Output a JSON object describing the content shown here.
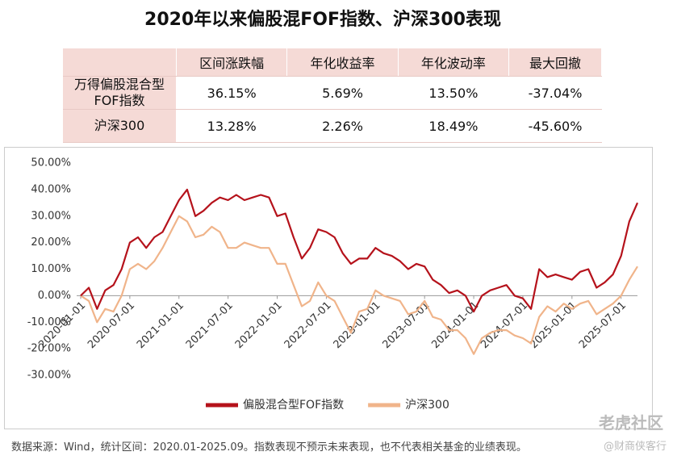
{
  "title": "2020年以来偏股混FOF指数、沪深300表现",
  "table": {
    "columns": [
      "区间涨跌幅",
      "年化收益率",
      "年化波动率",
      "最大回撤"
    ],
    "rows": [
      {
        "name": "万得偏股混合型FOF指数",
        "cells": [
          "36.15%",
          "5.69%",
          "13.50%",
          "-37.04%"
        ]
      },
      {
        "name": "沪深300",
        "cells": [
          "13.28%",
          "2.26%",
          "18.49%",
          "-45.60%"
        ]
      }
    ]
  },
  "chart_data": {
    "type": "line",
    "x": [
      "2020-01-01",
      "2020-02-01",
      "2020-03-01",
      "2020-04-01",
      "2020-05-01",
      "2020-06-01",
      "2020-07-01",
      "2020-08-01",
      "2020-09-01",
      "2020-10-01",
      "2020-11-01",
      "2020-12-01",
      "2021-01-01",
      "2021-02-01",
      "2021-03-01",
      "2021-04-01",
      "2021-05-01",
      "2021-06-01",
      "2021-07-01",
      "2021-08-01",
      "2021-09-01",
      "2021-10-01",
      "2021-11-01",
      "2021-12-01",
      "2022-01-01",
      "2022-02-01",
      "2022-03-01",
      "2022-04-01",
      "2022-05-01",
      "2022-06-01",
      "2022-07-01",
      "2022-08-01",
      "2022-09-01",
      "2022-10-01",
      "2022-11-01",
      "2022-12-01",
      "2023-01-01",
      "2023-02-01",
      "2023-03-01",
      "2023-04-01",
      "2023-05-01",
      "2023-06-01",
      "2023-07-01",
      "2023-08-01",
      "2023-09-01",
      "2023-10-01",
      "2023-11-01",
      "2023-12-01",
      "2024-01-01",
      "2024-02-01",
      "2024-03-01",
      "2024-04-01",
      "2024-05-01",
      "2024-06-01",
      "2024-07-01",
      "2024-08-01",
      "2024-09-01",
      "2024-10-01",
      "2024-11-01",
      "2024-12-01",
      "2025-01-01",
      "2025-02-01",
      "2025-03-01",
      "2025-04-01",
      "2025-05-01",
      "2025-06-01",
      "2025-07-01",
      "2025-08-01",
      "2025-09-01"
    ],
    "series": [
      {
        "name": "偏股混合型FOF指数",
        "color": "#b5121b",
        "values": [
          0,
          3,
          -5,
          2,
          4,
          10,
          20,
          22,
          18,
          22,
          24,
          30,
          36,
          40,
          30,
          32,
          35,
          37,
          36,
          38,
          36,
          37,
          38,
          37,
          30,
          31,
          22,
          14,
          18,
          25,
          24,
          22,
          16,
          12,
          14,
          14,
          18,
          16,
          15,
          13,
          10,
          12,
          11,
          6,
          4,
          1,
          2,
          0,
          -6,
          0,
          2,
          3,
          4,
          0,
          -1,
          -5,
          10,
          7,
          8,
          7,
          6,
          9,
          10,
          3,
          5,
          8,
          15,
          28,
          35
        ]
      },
      {
        "name": "沪深300",
        "color": "#f0b48a",
        "values": [
          0,
          -2,
          -10,
          -5,
          -6,
          0,
          10,
          12,
          10,
          13,
          18,
          24,
          30,
          28,
          22,
          23,
          26,
          24,
          18,
          18,
          20,
          19,
          18,
          18,
          12,
          12,
          4,
          -4,
          -2,
          5,
          0,
          -2,
          -8,
          -14,
          -6,
          -5,
          2,
          0,
          -1,
          -2,
          -7,
          -6,
          -2,
          -8,
          -9,
          -13,
          -13,
          -16,
          -22,
          -16,
          -14,
          -13,
          -13,
          -15,
          -16,
          -18,
          -8,
          -4,
          -6,
          -3,
          -5,
          -3,
          -2,
          -7,
          -5,
          -3,
          0,
          6,
          11
        ]
      }
    ],
    "ylim": [
      -30,
      50
    ],
    "yticks": [
      {
        "value": 50,
        "label": "50.00%"
      },
      {
        "value": 40,
        "label": "40.00%"
      },
      {
        "value": 30,
        "label": "30.00%"
      },
      {
        "value": 20,
        "label": "20.00%"
      },
      {
        "value": 10,
        "label": "10.00%"
      },
      {
        "value": 0,
        "label": "0.00%"
      },
      {
        "value": -10,
        "label": "-10.00%"
      },
      {
        "value": -20,
        "label": "-20.00%"
      },
      {
        "value": -30,
        "label": "-30.00%"
      }
    ],
    "xticks": [
      "2020-01-01",
      "2020-07-01",
      "2021-01-01",
      "2021-07-01",
      "2022-01-01",
      "2022-07-01",
      "2023-01-01",
      "2023-07-01",
      "2024-01-01",
      "2024-07-01",
      "2025-01-01",
      "2025-07-01"
    ],
    "grid": false,
    "legend": "bottom"
  },
  "note": "数据来源：Wind，统计区间：2020.01-2025.09。指数表现不预示未来表现，也不代表相关基金的业绩表现。",
  "watermark": [
    "老虎社区",
    "@财商侠客行"
  ]
}
